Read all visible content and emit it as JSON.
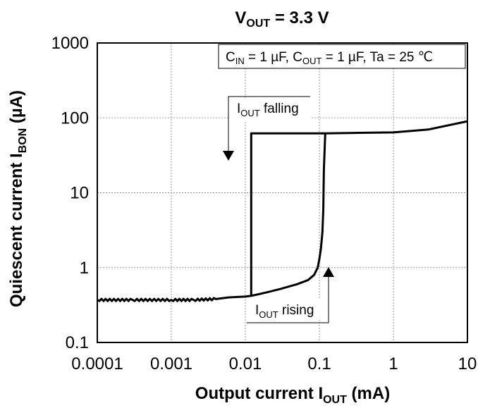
{
  "chart_data": {
    "type": "line",
    "title": {
      "main": "V",
      "sub": "OUT",
      "rest": " = 3.3 V"
    },
    "conditions": [
      {
        "main": "C",
        "sub": "IN",
        "rest": " = 1 µF, "
      },
      {
        "main": "C",
        "sub": "OUT",
        "rest": " = 1 µF, Ta = 25 ℃"
      }
    ],
    "xlabel": {
      "main": "Output current  I",
      "sub": "OUT",
      "rest": " (mA)"
    },
    "ylabel": {
      "main": "Quiescent current  I",
      "sub": "BON",
      "rest": " (µA)"
    },
    "xscale": "log",
    "yscale": "log",
    "xlim": [
      0.0001,
      10
    ],
    "ylim": [
      0.1,
      1000
    ],
    "xticks": [
      "0.0001",
      "0.001",
      "0.01",
      "0.1",
      "1",
      "10"
    ],
    "yticks": [
      "0.1",
      "1",
      "10",
      "100",
      "1000"
    ],
    "grid": true,
    "annotations": {
      "falling": {
        "main": "I",
        "sub": "OUT",
        "rest": " falling"
      },
      "rising": {
        "main": "I",
        "sub": "OUT",
        "rest": " rising"
      }
    },
    "series": [
      {
        "x": [
          0.0001,
          0.0003,
          0.001,
          0.002,
          0.004,
          0.006,
          0.01,
          0.012,
          0.012,
          0.012,
          0.02,
          0.05,
          0.1,
          0.12,
          0.3,
          1,
          3,
          10
        ],
        "y": [
          0.37,
          0.37,
          0.37,
          0.37,
          0.38,
          0.4,
          0.41,
          0.42,
          62,
          62,
          62,
          62,
          62,
          62,
          63,
          64,
          70,
          90
        ]
      },
      {
        "x": [
          0.012,
          0.015,
          0.02,
          0.03,
          0.05,
          0.07,
          0.085,
          0.095,
          0.1,
          0.105,
          0.11,
          0.113,
          0.115,
          0.12
        ],
        "y": [
          0.42,
          0.44,
          0.47,
          0.52,
          0.6,
          0.68,
          0.8,
          1,
          1.3,
          1.8,
          3,
          6,
          20,
          62
        ]
      }
    ]
  }
}
